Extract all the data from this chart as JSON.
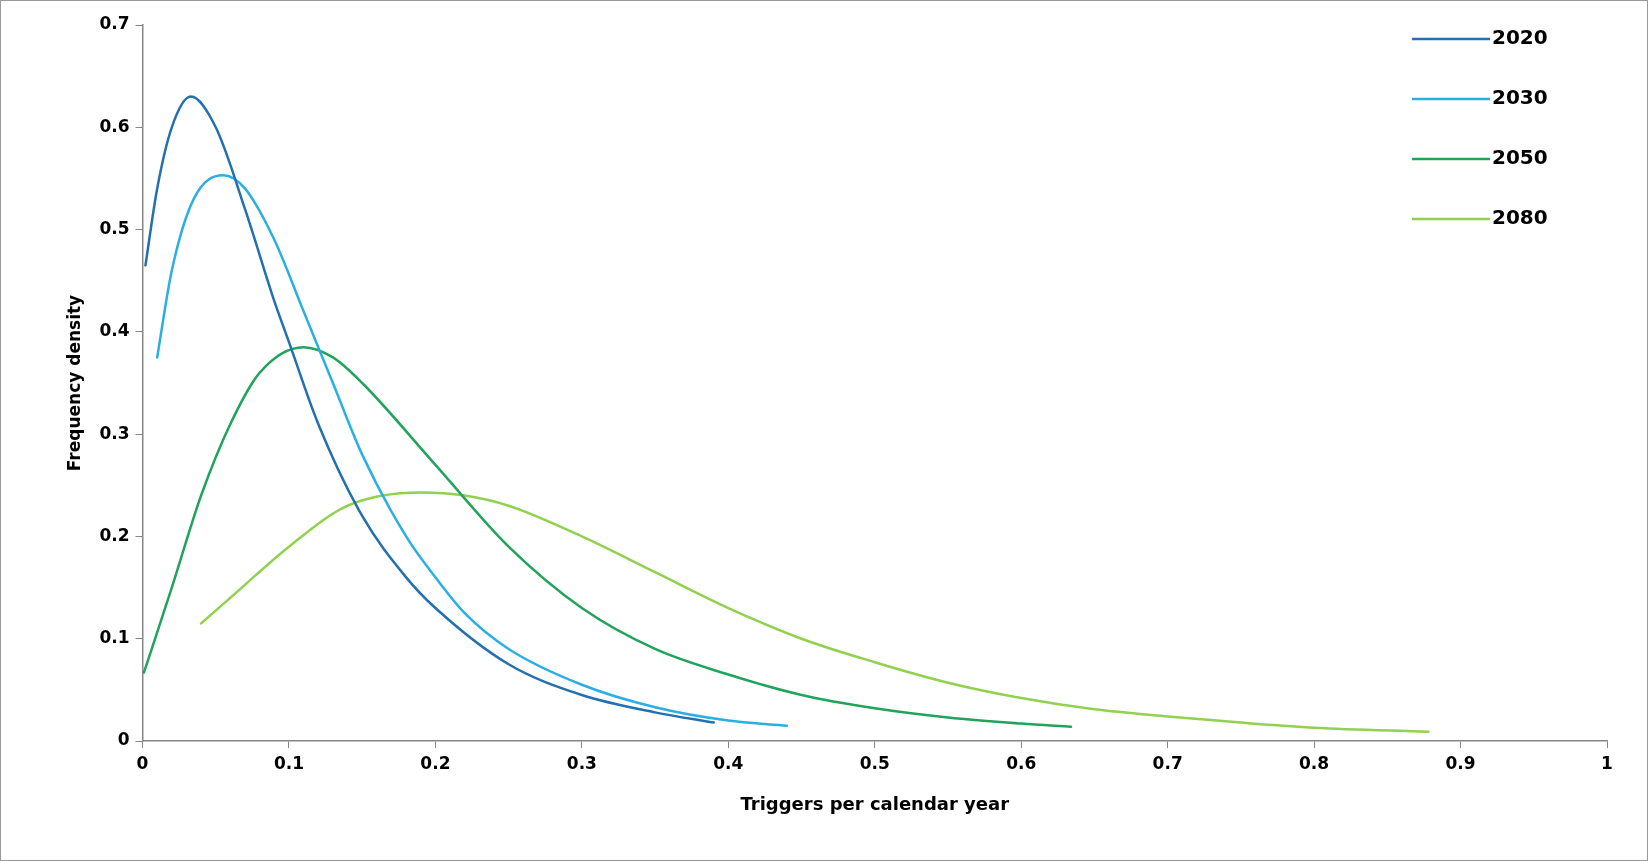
{
  "chart_data": {
    "type": "line",
    "xlabel": "Triggers per calendar year",
    "ylabel": "Frequency density",
    "xlim": [
      0,
      1
    ],
    "xticks": [
      0,
      0.1,
      0.2,
      0.3,
      0.4,
      0.5,
      0.6,
      0.7,
      0.8,
      0.9,
      1
    ],
    "ylim": [
      0,
      0.7
    ],
    "yticks": [
      0,
      0.1,
      0.2,
      0.3,
      0.4,
      0.5,
      0.6,
      0.7
    ],
    "grid": false,
    "legend": "top right",
    "marker": "none",
    "line_style": "solid",
    "series": [
      {
        "name": "2020",
        "color": "#2370b0",
        "x": [
          0.002,
          0.01,
          0.02,
          0.033,
          0.05,
          0.07,
          0.09,
          0.1,
          0.12,
          0.15,
          0.18,
          0.2,
          0.25,
          0.3,
          0.35,
          0.39
        ],
        "values": [
          0.465,
          0.54,
          0.6,
          0.63,
          0.6,
          0.52,
          0.43,
          0.39,
          0.31,
          0.22,
          0.16,
          0.13,
          0.075,
          0.045,
          0.028,
          0.018
        ]
      },
      {
        "name": "2030",
        "color": "#2bafe3",
        "x": [
          0.01,
          0.02,
          0.035,
          0.055,
          0.07,
          0.09,
          0.11,
          0.13,
          0.15,
          0.18,
          0.2,
          0.22,
          0.25,
          0.3,
          0.35,
          0.4,
          0.44
        ],
        "values": [
          0.375,
          0.46,
          0.53,
          0.553,
          0.54,
          0.49,
          0.42,
          0.35,
          0.28,
          0.2,
          0.16,
          0.125,
          0.09,
          0.055,
          0.033,
          0.02,
          0.015
        ]
      },
      {
        "name": "2050",
        "color": "#20a35a",
        "x": [
          0.001,
          0.02,
          0.04,
          0.06,
          0.08,
          0.11,
          0.13,
          0.15,
          0.2,
          0.25,
          0.3,
          0.35,
          0.4,
          0.45,
          0.5,
          0.55,
          0.6,
          0.634
        ],
        "values": [
          0.067,
          0.15,
          0.24,
          0.31,
          0.36,
          0.385,
          0.375,
          0.35,
          0.27,
          0.19,
          0.13,
          0.09,
          0.065,
          0.045,
          0.032,
          0.023,
          0.017,
          0.014
        ]
      },
      {
        "name": "2080",
        "color": "#92d050",
        "x": [
          0.04,
          0.06,
          0.1,
          0.14,
          0.19,
          0.22,
          0.25,
          0.3,
          0.35,
          0.4,
          0.45,
          0.5,
          0.55,
          0.6,
          0.65,
          0.7,
          0.75,
          0.8,
          0.878
        ],
        "values": [
          0.115,
          0.14,
          0.19,
          0.23,
          0.243,
          0.24,
          0.23,
          0.2,
          0.165,
          0.13,
          0.1,
          0.077,
          0.057,
          0.042,
          0.031,
          0.024,
          0.018,
          0.013,
          0.009
        ]
      }
    ]
  }
}
